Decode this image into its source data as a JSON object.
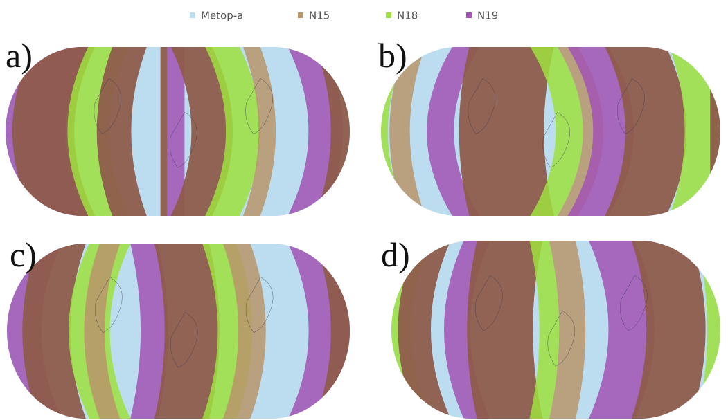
{
  "legend": {
    "items": [
      {
        "label": "Metop-a",
        "color": "#bcdcf0"
      },
      {
        "label": "N15",
        "color": "#b8956a"
      },
      {
        "label": "N18",
        "color": "#9fe040"
      },
      {
        "label": "N19",
        "color": "#a253b4"
      }
    ]
  },
  "panels": [
    {
      "label": "a)"
    },
    {
      "label": "b)"
    },
    {
      "label": "c)"
    },
    {
      "label": "d)"
    }
  ]
}
